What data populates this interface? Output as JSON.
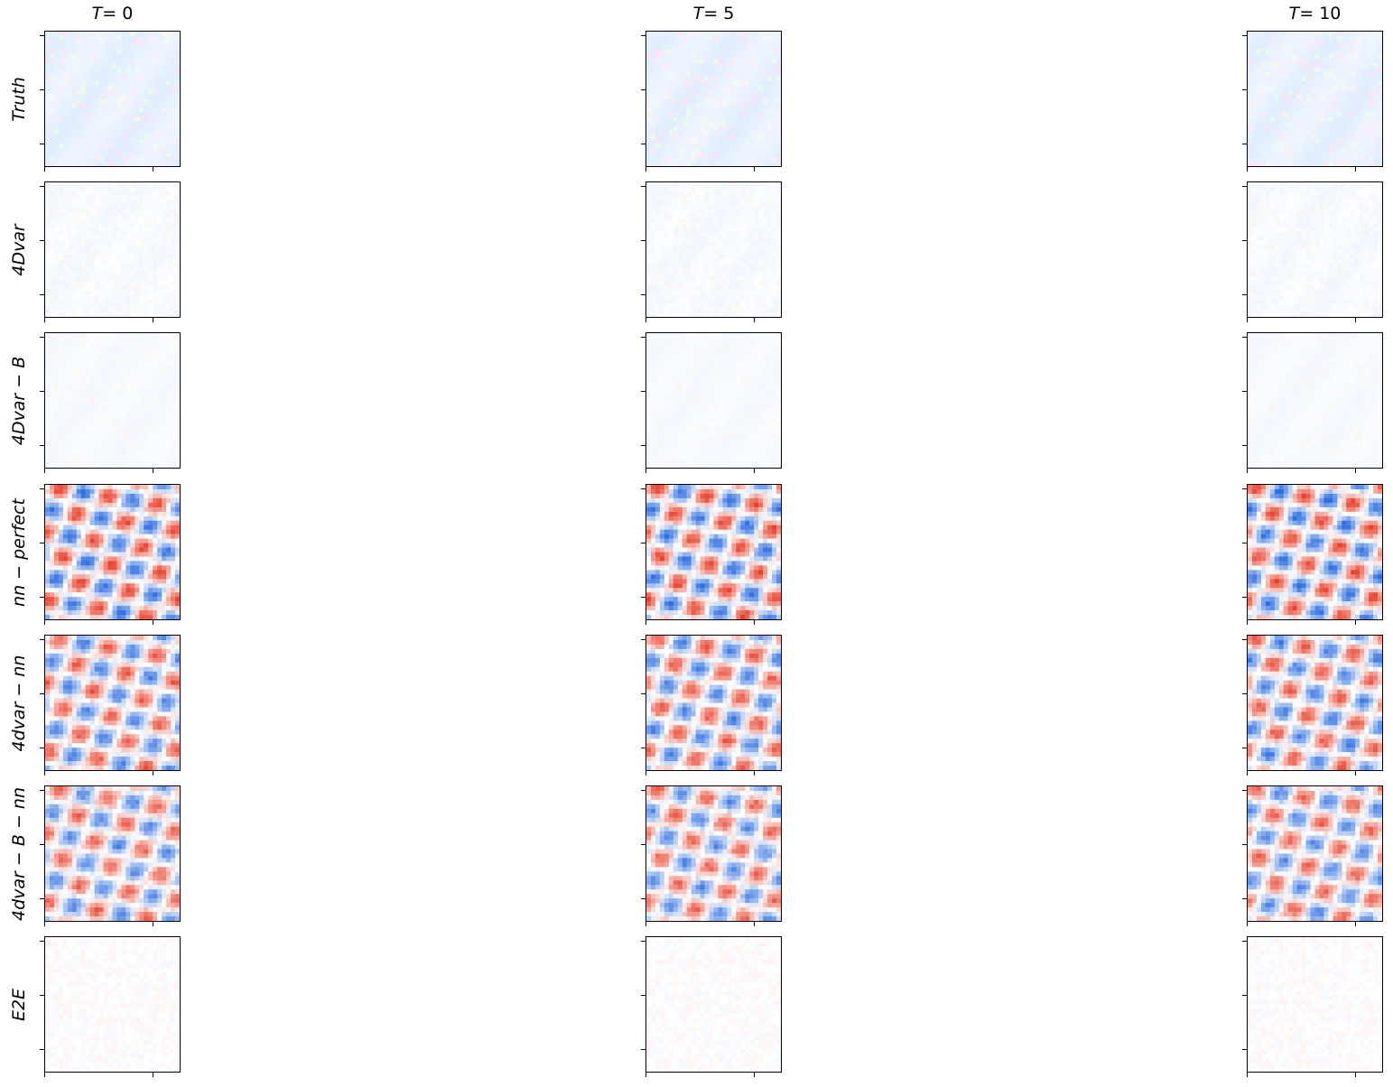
{
  "chart_data": {
    "type": "heatmap",
    "columns": [
      {
        "prefix": "T",
        "value": "= 0"
      },
      {
        "prefix": "T",
        "value": "= 5"
      },
      {
        "prefix": "T",
        "value": "= 10"
      }
    ],
    "rows": [
      {
        "label": "Truth",
        "style": "pastel",
        "intensity": 0.55
      },
      {
        "label": "4Dvar",
        "style": "pastel-noise",
        "intensity": 0.28
      },
      {
        "label": "4Dvar − B",
        "style": "pastel",
        "intensity": 0.22
      },
      {
        "label": "nn − perfect",
        "style": "diverging",
        "intensity": 0.95
      },
      {
        "label": "4dvar − nn",
        "style": "diverging",
        "intensity": 0.85
      },
      {
        "label": "4dvar − B − nn",
        "style": "diverging",
        "intensity": 0.8
      },
      {
        "label": "E2E",
        "style": "noise",
        "intensity": 0.25
      }
    ],
    "colors": {
      "positive": "#e8412c",
      "negative": "#2f6fe0",
      "pastel_base": "#dce9ff"
    },
    "grid": false,
    "legend": "none"
  }
}
